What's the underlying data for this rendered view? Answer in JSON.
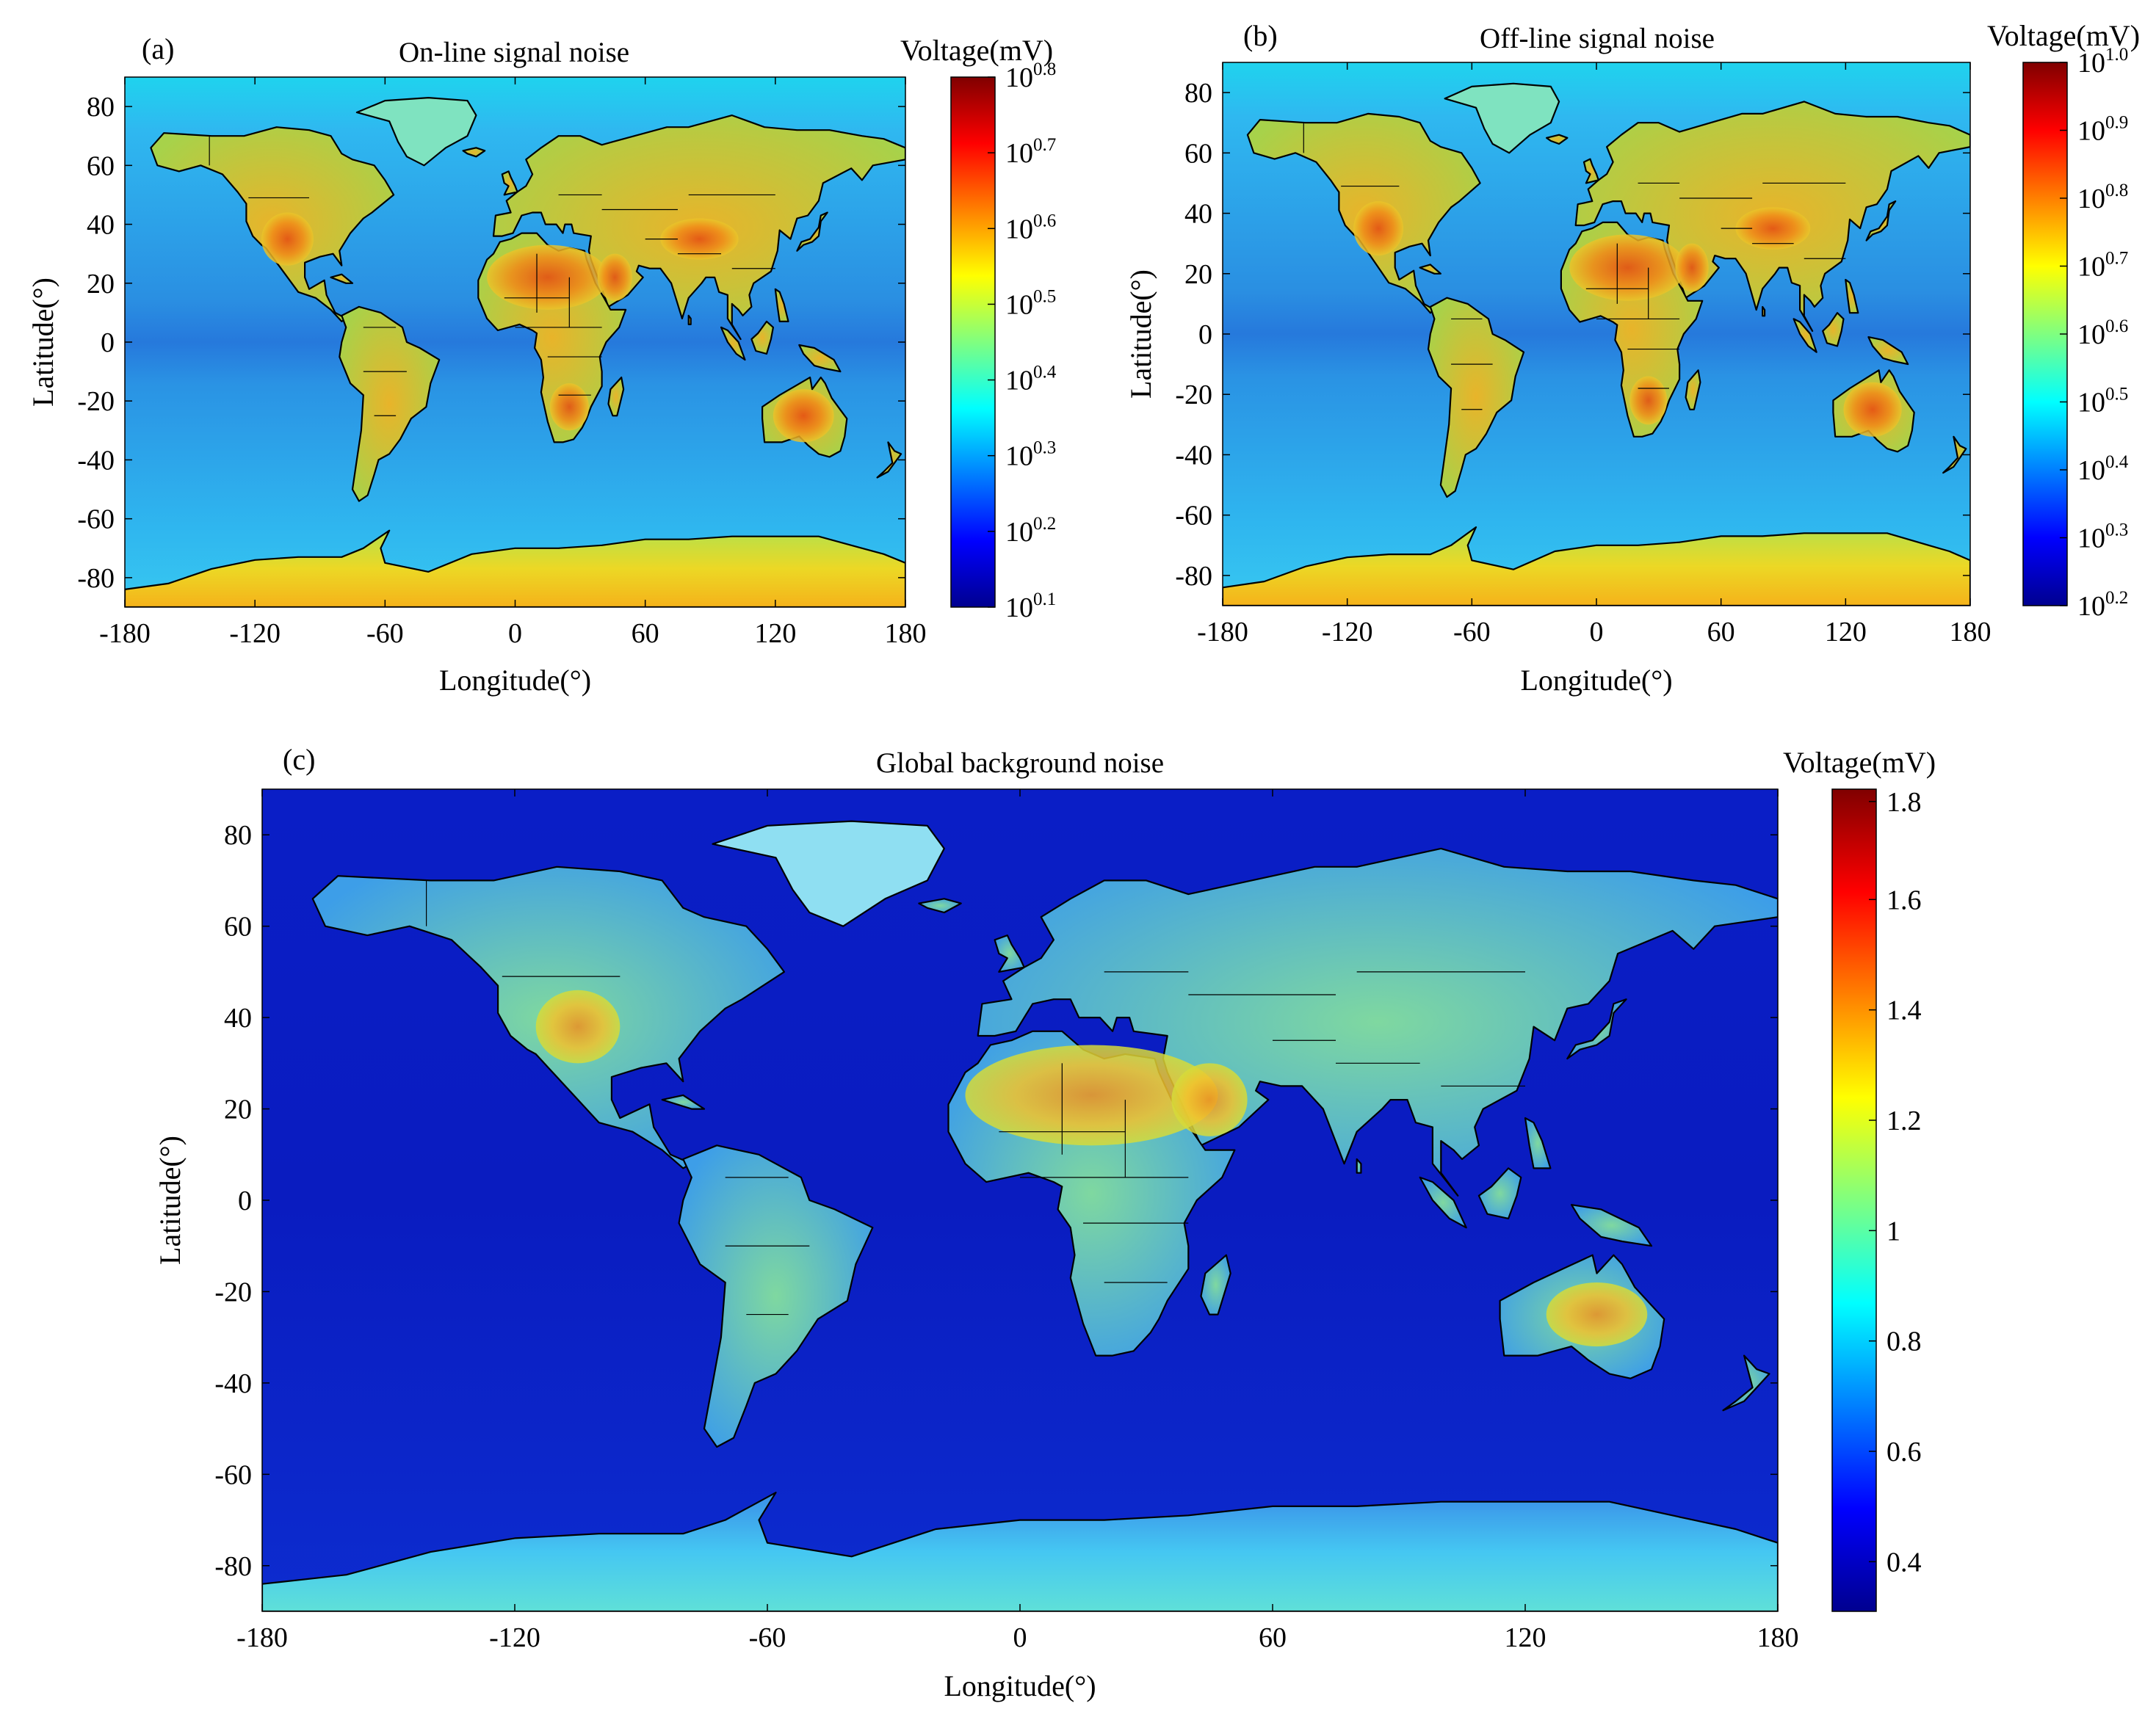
{
  "panels": [
    {
      "letter": "(a)",
      "title": "On-line signal noise",
      "xlabel": "Longitude(°)",
      "ylabel": "Latitude(°)",
      "xticks": [
        "-180",
        "-120",
        "-60",
        "0",
        "60",
        "120",
        "180"
      ],
      "yticks": [
        "80",
        "60",
        "40",
        "20",
        "0",
        "-20",
        "-40",
        "-60",
        "-80"
      ],
      "colorbar": {
        "title": "Voltage(mV)",
        "scale": "log",
        "ticks": [
          {
            "base": "10",
            "exp": "0.8"
          },
          {
            "base": "10",
            "exp": "0.7"
          },
          {
            "base": "10",
            "exp": "0.6"
          },
          {
            "base": "10",
            "exp": "0.5"
          },
          {
            "base": "10",
            "exp": "0.4"
          },
          {
            "base": "10",
            "exp": "0.3"
          },
          {
            "base": "10",
            "exp": "0.2"
          },
          {
            "base": "10",
            "exp": "0.1"
          }
        ]
      }
    },
    {
      "letter": "(b)",
      "title": "Off-line signal noise",
      "xlabel": "Longitude(°)",
      "ylabel": "Latitude(°)",
      "xticks": [
        "-180",
        "-120",
        "-60",
        "0",
        "60",
        "120",
        "180"
      ],
      "yticks": [
        "80",
        "60",
        "40",
        "20",
        "0",
        "-20",
        "-40",
        "-60",
        "-80"
      ],
      "colorbar": {
        "title": "Voltage(mV)",
        "scale": "log",
        "ticks": [
          {
            "base": "10",
            "exp": "1.0"
          },
          {
            "base": "10",
            "exp": "0.9"
          },
          {
            "base": "10",
            "exp": "0.8"
          },
          {
            "base": "10",
            "exp": "0.7"
          },
          {
            "base": "10",
            "exp": "0.6"
          },
          {
            "base": "10",
            "exp": "0.5"
          },
          {
            "base": "10",
            "exp": "0.4"
          },
          {
            "base": "10",
            "exp": "0.3"
          },
          {
            "base": "10",
            "exp": "0.2"
          }
        ]
      }
    },
    {
      "letter": "(c)",
      "title": "Global background noise",
      "xlabel": "Longitude(°)",
      "ylabel": "Latitude(°)",
      "xticks": [
        "-180",
        "-120",
        "-60",
        "0",
        "60",
        "120",
        "180"
      ],
      "yticks": [
        "80",
        "60",
        "40",
        "20",
        "0",
        "-20",
        "-40",
        "-60",
        "-80"
      ],
      "colorbar": {
        "title": "Voltage(mV)",
        "scale": "linear",
        "ticks": [
          {
            "base": "1.8",
            "exp": ""
          },
          {
            "base": "1.6",
            "exp": ""
          },
          {
            "base": "1.4",
            "exp": ""
          },
          {
            "base": "1.2",
            "exp": ""
          },
          {
            "base": "1",
            "exp": ""
          },
          {
            "base": "0.8",
            "exp": ""
          },
          {
            "base": "0.6",
            "exp": ""
          },
          {
            "base": "0.4",
            "exp": ""
          }
        ]
      }
    }
  ],
  "colors": {
    "colormap": "jet",
    "ocean_ab": "#2b9be8",
    "ocean_c": "#0a20c8",
    "border": "#000000"
  }
}
